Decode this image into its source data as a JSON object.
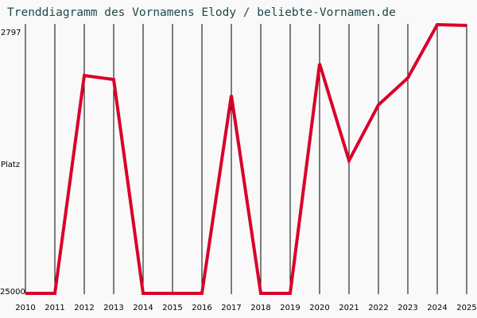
{
  "title": "Trenddiagramm des Vornamens Elody / beliebte-Vornamen.de",
  "y_axis": {
    "top_label": "2797",
    "mid_label": "Platz",
    "bottom_label": "25000"
  },
  "colors": {
    "line": "#d9002a",
    "grid": "#000000",
    "title": "#1f4a4a",
    "background": "#f9f9f9"
  },
  "chart_data": {
    "type": "line",
    "title": "Trenddiagramm des Vornamens Elody / beliebte-Vornamen.de",
    "xlabel": "",
    "ylabel": "Platz",
    "y_inverted": true,
    "ylim": [
      25000,
      2797
    ],
    "grid": true,
    "categories": [
      "2010",
      "2011",
      "2012",
      "2013",
      "2014",
      "2015",
      "2016",
      "2017",
      "2018",
      "2019",
      "2020",
      "2021",
      "2022",
      "2023",
      "2024",
      "2025"
    ],
    "series": [
      {
        "name": "Elody",
        "values": [
          25000,
          25000,
          7000,
          7330,
          25000,
          25000,
          25000,
          8640,
          25000,
          25000,
          6020,
          14030,
          9430,
          7200,
          2797,
          2860
        ]
      }
    ]
  }
}
